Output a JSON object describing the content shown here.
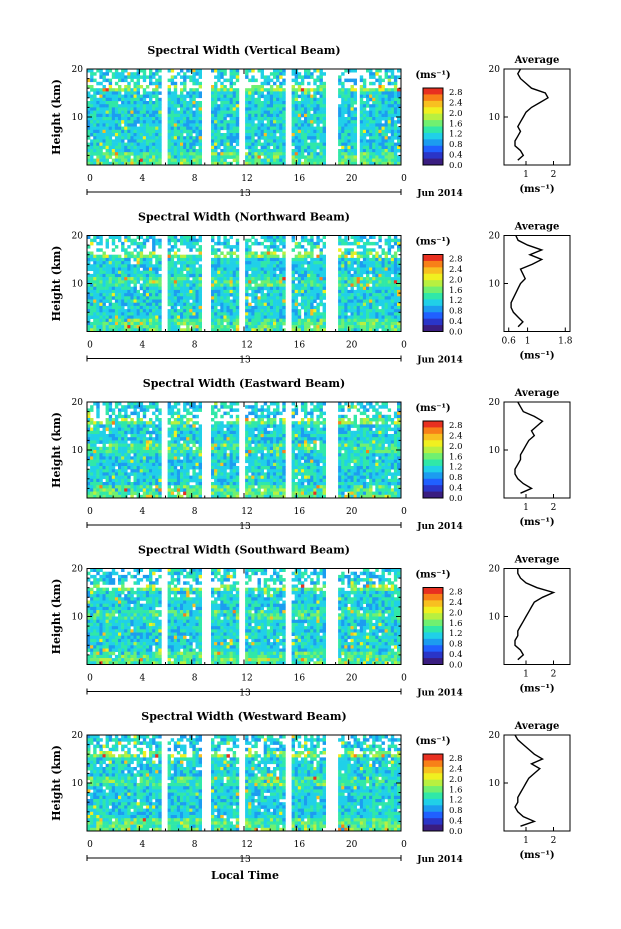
{
  "figure": {
    "xlabel": "Local Time",
    "date_label": "Jun 2014",
    "day_label": "13",
    "ylabel": "Height (km)",
    "unit_label": "(ms⁻¹)",
    "avg_title": "Average",
    "avg_xlabel": "(ms⁻¹)"
  },
  "colorbar": {
    "ticks": [
      "2.8",
      "2.4",
      "2.0",
      "1.6",
      "1.2",
      "0.8",
      "0.4",
      "0.0"
    ],
    "colors": [
      "#3a1d80",
      "#2a35c8",
      "#2060ff",
      "#1c9cf0",
      "#20d0e8",
      "#30e8a8",
      "#70f070",
      "#b8f040",
      "#f0f020",
      "#f8c020",
      "#f88018",
      "#e83020"
    ]
  },
  "chart_data": [
    {
      "type": "heatmap",
      "title": "Spectral Width (Vertical Beam)",
      "x_ticks": [
        "0",
        "4",
        "8",
        "12",
        "16",
        "20",
        "0"
      ],
      "y_ticks": [
        "20",
        "10"
      ],
      "ylim": [
        0,
        20
      ],
      "gaps_hours": [
        [
          5.6,
          6.2
        ],
        [
          8.7,
          9.4
        ],
        [
          11.7,
          12.2
        ],
        [
          15.1,
          15.6
        ],
        [
          18.4,
          19.2
        ],
        [
          20.6,
          21.0
        ]
      ],
      "average_profile": {
        "x_ticks": [
          "1",
          "2"
        ],
        "xlim": [
          0.2,
          2.6
        ],
        "height": [
          1,
          2,
          3,
          4,
          5,
          6,
          7,
          8,
          9,
          10,
          11,
          12,
          13,
          14,
          15,
          16,
          17,
          18,
          19,
          20
        ],
        "width": [
          0.7,
          0.9,
          0.8,
          0.6,
          0.6,
          0.7,
          0.8,
          0.7,
          0.8,
          0.9,
          1.0,
          1.2,
          1.5,
          1.8,
          1.7,
          1.2,
          1.0,
          0.8,
          0.7,
          0.8
        ]
      }
    },
    {
      "type": "heatmap",
      "title": "Spectral Width (Northward Beam)",
      "x_ticks": [
        "0",
        "4",
        "8",
        "12",
        "16",
        "20",
        "0"
      ],
      "y_ticks": [
        "20",
        "10"
      ],
      "ylim": [
        0,
        20
      ],
      "gaps_hours": [
        [
          5.6,
          6.2
        ],
        [
          8.7,
          9.4
        ],
        [
          11.7,
          12.2
        ],
        [
          15.1,
          15.6
        ],
        [
          18.4,
          19.2
        ]
      ],
      "average_profile": {
        "x_ticks": [
          "0.6",
          "1",
          "1.8"
        ],
        "xlim": [
          0.5,
          1.9
        ],
        "height": [
          1,
          2,
          3,
          4,
          5,
          6,
          7,
          8,
          9,
          10,
          11,
          12,
          13,
          14,
          15,
          16,
          17,
          18,
          19,
          20
        ],
        "width": [
          0.8,
          0.9,
          0.8,
          0.7,
          0.65,
          0.65,
          0.7,
          0.75,
          0.8,
          0.85,
          0.95,
          0.9,
          0.85,
          1.1,
          1.3,
          1.05,
          1.3,
          1.0,
          0.8,
          0.75
        ]
      }
    },
    {
      "type": "heatmap",
      "title": "Spectral Width (Eastward Beam)",
      "x_ticks": [
        "0",
        "4",
        "8",
        "12",
        "16",
        "20",
        "0"
      ],
      "y_ticks": [
        "20",
        "10"
      ],
      "ylim": [
        0,
        20
      ],
      "gaps_hours": [
        [
          5.6,
          6.2
        ],
        [
          8.7,
          9.4
        ],
        [
          11.7,
          12.2
        ],
        [
          15.1,
          15.6
        ],
        [
          18.4,
          19.2
        ]
      ],
      "average_profile": {
        "x_ticks": [
          "1",
          "2"
        ],
        "xlim": [
          0.2,
          2.6
        ],
        "height": [
          1,
          2,
          3,
          4,
          5,
          6,
          7,
          8,
          9,
          10,
          11,
          12,
          13,
          14,
          15,
          16,
          17,
          18,
          19,
          20
        ],
        "width": [
          0.8,
          1.2,
          0.9,
          0.7,
          0.6,
          0.6,
          0.7,
          0.8,
          0.8,
          0.9,
          1.0,
          1.1,
          1.3,
          1.2,
          1.4,
          1.6,
          1.3,
          0.9,
          0.8,
          0.7
        ]
      }
    },
    {
      "type": "heatmap",
      "title": "Spectral Width (Southward Beam)",
      "x_ticks": [
        "0",
        "4",
        "8",
        "12",
        "16",
        "20",
        "0"
      ],
      "y_ticks": [
        "20",
        "10"
      ],
      "ylim": [
        0,
        20
      ],
      "gaps_hours": [
        [
          5.6,
          6.2
        ],
        [
          8.7,
          9.4
        ],
        [
          11.7,
          12.2
        ],
        [
          15.1,
          15.6
        ],
        [
          18.4,
          19.2
        ]
      ],
      "average_profile": {
        "x_ticks": [
          "1",
          "2"
        ],
        "xlim": [
          0.2,
          2.6
        ],
        "height": [
          1,
          2,
          3,
          4,
          5,
          6,
          7,
          8,
          9,
          10,
          11,
          12,
          13,
          14,
          15,
          16,
          17,
          18,
          19,
          20
        ],
        "width": [
          0.7,
          0.9,
          0.8,
          0.6,
          0.6,
          0.7,
          0.7,
          0.8,
          0.9,
          1.0,
          1.1,
          1.2,
          1.3,
          1.6,
          2.0,
          1.4,
          1.0,
          0.8,
          0.7,
          0.7
        ]
      }
    },
    {
      "type": "heatmap",
      "title": "Spectral Width (Westward Beam)",
      "x_ticks": [
        "0",
        "4",
        "8",
        "12",
        "16",
        "20",
        "0"
      ],
      "y_ticks": [
        "20",
        "10"
      ],
      "ylim": [
        0,
        20
      ],
      "gaps_hours": [
        [
          5.6,
          6.2
        ],
        [
          8.7,
          9.4
        ],
        [
          11.7,
          12.2
        ],
        [
          15.1,
          15.6
        ],
        [
          18.4,
          19.2
        ]
      ],
      "average_profile": {
        "x_ticks": [
          "1",
          "2"
        ],
        "xlim": [
          0.2,
          2.6
        ],
        "height": [
          1,
          2,
          3,
          4,
          5,
          6,
          7,
          8,
          9,
          10,
          11,
          12,
          13,
          14,
          15,
          16,
          17,
          18,
          19,
          20
        ],
        "width": [
          0.8,
          1.3,
          0.9,
          0.7,
          0.6,
          0.7,
          0.7,
          0.8,
          0.9,
          1.0,
          1.1,
          1.3,
          1.5,
          1.2,
          1.6,
          1.3,
          1.1,
          0.9,
          0.7,
          0.6
        ]
      }
    }
  ]
}
